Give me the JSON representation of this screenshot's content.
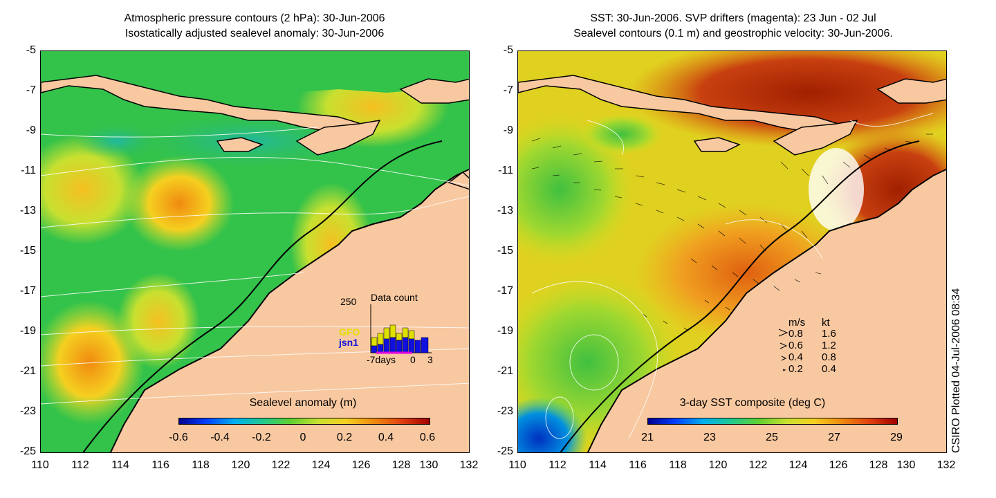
{
  "left": {
    "title_line1": "Atmospheric pressure contours (2 hPa): 30-Jun-2006",
    "title_line2": "Isostatically adjusted sealevel anomaly: 30-Jun-2006",
    "colorbar_title": "Sealevel anomaly (m)",
    "colorbar_ticks": [
      "-0.6",
      "-0.4",
      "-0.2",
      "0",
      "0.2",
      "0.4",
      "0.6"
    ],
    "inset": {
      "title": "Data count",
      "max_label": "250",
      "gfo_label": "GFO",
      "jsn_label": "jsn1",
      "x_left": "-7days",
      "x_mid": "0",
      "x_right": "3"
    }
  },
  "right": {
    "title_line1": "SST: 30-Jun-2006. SVP drifters (magenta): 23 Jun - 02 Jul",
    "title_line2": "Sealevel contours (0.1 m) and geostrophic velocity: 30-Jun-2006.",
    "colorbar_title": "3-day SST composite (deg C)",
    "colorbar_ticks": [
      "21",
      "23",
      "25",
      "27",
      "29"
    ],
    "legend": {
      "header_ms": "m/s",
      "header_kt": "kt",
      "rows": [
        {
          "ms": "0.8",
          "kt": "1.6"
        },
        {
          "ms": "0.6",
          "kt": "1.2"
        },
        {
          "ms": "0.4",
          "kt": "0.8"
        },
        {
          "ms": "0.2",
          "kt": "0.4"
        }
      ]
    }
  },
  "axes": {
    "y_ticks": [
      "-5",
      "-7",
      "-9",
      "-11",
      "-13",
      "-15",
      "-17",
      "-19",
      "-21",
      "-23",
      "-25"
    ],
    "x_ticks": [
      "110",
      "112",
      "114",
      "116",
      "118",
      "120",
      "122",
      "124",
      "126",
      "128",
      "130",
      "132"
    ]
  },
  "credit": "CSIRO Plotted 04-Jul-2006 08:34",
  "colors": {
    "land": "#f8c8a0",
    "sla_base": "#33c24a",
    "sst_base": "#f0b020"
  }
}
